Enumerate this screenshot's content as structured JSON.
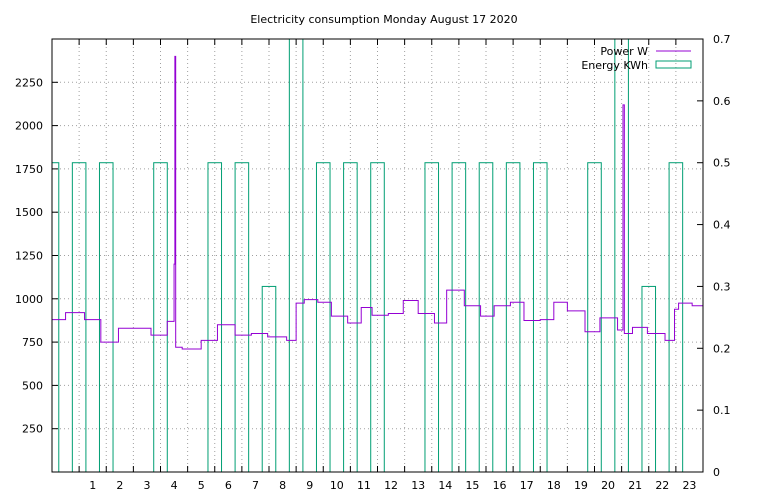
{
  "chart_data": {
    "type": "line",
    "title": "Electricity consumption Monday August 17 2020",
    "xlabel": "",
    "ylabel": "",
    "y2label": "",
    "x_ticks": [
      "1",
      "2",
      "3",
      "4",
      "5",
      "6",
      "7",
      "8",
      "9",
      "10",
      "11",
      "12",
      "13",
      "14",
      "15",
      "16",
      "17",
      "18",
      "19",
      "20",
      "21",
      "22",
      "23"
    ],
    "xlim": [
      0,
      24
    ],
    "ylim": [
      0,
      2500
    ],
    "y_ticks": [
      "250",
      "500",
      "750",
      "1000",
      "1250",
      "1500",
      "1750",
      "2000",
      "2250"
    ],
    "y2lim": [
      0,
      0.7
    ],
    "y2_ticks": [
      "0",
      "0.1",
      "0.2",
      "0.3",
      "0.4",
      "0.5",
      "0.6",
      "0.7"
    ],
    "grid": true,
    "legend_position": "top-right",
    "series": [
      {
        "name": "Power W",
        "axis": "left",
        "style": "steps",
        "color": "#9400d3",
        "points": [
          [
            0.0,
            880
          ],
          [
            0.5,
            920
          ],
          [
            1.2,
            880
          ],
          [
            1.8,
            750
          ],
          [
            2.45,
            830
          ],
          [
            3.65,
            790
          ],
          [
            4.25,
            870
          ],
          [
            4.5,
            1200
          ],
          [
            4.53,
            2400
          ],
          [
            4.56,
            720
          ],
          [
            4.8,
            710
          ],
          [
            5.5,
            760
          ],
          [
            6.1,
            850
          ],
          [
            6.75,
            790
          ],
          [
            7.35,
            800
          ],
          [
            7.95,
            780
          ],
          [
            8.65,
            760
          ],
          [
            9.0,
            975
          ],
          [
            9.3,
            995
          ],
          [
            9.8,
            980
          ],
          [
            10.3,
            900
          ],
          [
            10.9,
            860
          ],
          [
            11.4,
            950
          ],
          [
            11.8,
            905
          ],
          [
            12.4,
            915
          ],
          [
            12.95,
            990
          ],
          [
            13.5,
            915
          ],
          [
            14.1,
            860
          ],
          [
            14.55,
            1050
          ],
          [
            15.2,
            960
          ],
          [
            15.8,
            900
          ],
          [
            16.3,
            960
          ],
          [
            16.9,
            980
          ],
          [
            17.4,
            875
          ],
          [
            18.0,
            880
          ],
          [
            18.5,
            980
          ],
          [
            19.0,
            930
          ],
          [
            19.65,
            810
          ],
          [
            20.2,
            890
          ],
          [
            20.85,
            820
          ],
          [
            21.05,
            2120
          ],
          [
            21.1,
            800
          ],
          [
            21.4,
            835
          ],
          [
            21.95,
            800
          ],
          [
            22.6,
            760
          ],
          [
            22.95,
            940
          ],
          [
            23.1,
            975
          ],
          [
            23.6,
            960
          ],
          [
            24.0,
            960
          ]
        ]
      },
      {
        "name": "Energy KWh",
        "axis": "right",
        "style": "fsteps",
        "color": "#009e73",
        "bars": [
          {
            "x0": 0.0,
            "x1": 0.25,
            "value": 0.5
          },
          {
            "x0": 0.75,
            "x1": 1.25,
            "value": 0.5
          },
          {
            "x0": 1.75,
            "x1": 2.25,
            "value": 0.5
          },
          {
            "x0": 3.75,
            "x1": 4.25,
            "value": 0.5
          },
          {
            "x0": 5.75,
            "x1": 6.25,
            "value": 0.5
          },
          {
            "x0": 6.75,
            "x1": 7.25,
            "value": 0.5
          },
          {
            "x0": 7.75,
            "x1": 8.25,
            "value": 0.3
          },
          {
            "x0": 8.75,
            "x1": 9.25,
            "value": 0.7
          },
          {
            "x0": 9.75,
            "x1": 10.25,
            "value": 0.5
          },
          {
            "x0": 10.75,
            "x1": 11.25,
            "value": 0.5
          },
          {
            "x0": 11.75,
            "x1": 12.25,
            "value": 0.5
          },
          {
            "x0": 13.75,
            "x1": 14.25,
            "value": 0.5
          },
          {
            "x0": 14.75,
            "x1": 15.25,
            "value": 0.5
          },
          {
            "x0": 15.75,
            "x1": 16.25,
            "value": 0.5
          },
          {
            "x0": 16.75,
            "x1": 17.25,
            "value": 0.5
          },
          {
            "x0": 17.75,
            "x1": 18.25,
            "value": 0.5
          },
          {
            "x0": 19.75,
            "x1": 20.25,
            "value": 0.5
          },
          {
            "x0": 20.75,
            "x1": 21.25,
            "value": 0.7
          },
          {
            "x0": 21.75,
            "x1": 22.25,
            "value": 0.3
          },
          {
            "x0": 22.75,
            "x1": 23.25,
            "value": 0.5
          }
        ]
      }
    ]
  }
}
